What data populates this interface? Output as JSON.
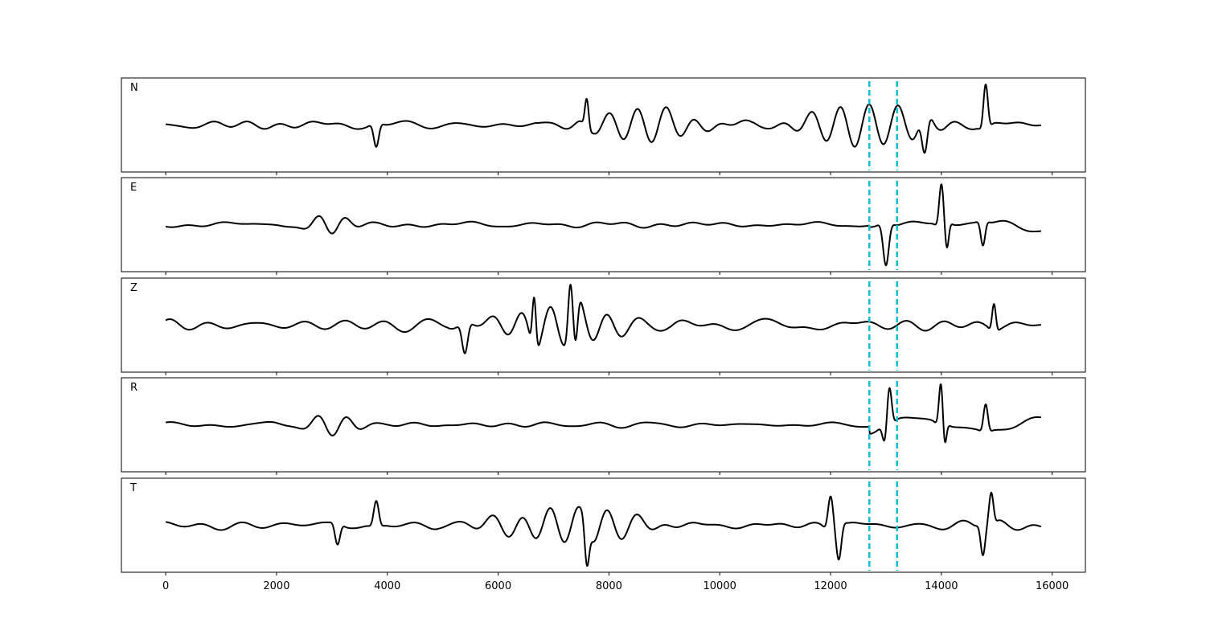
{
  "chart_data": {
    "type": "line",
    "xlim": [
      -800,
      16600
    ],
    "x_ticks": [
      0,
      2000,
      4000,
      6000,
      8000,
      10000,
      12000,
      14000,
      16000
    ],
    "x_tick_labels": [
      "0",
      "2000",
      "4000",
      "6000",
      "8000",
      "10000",
      "12000",
      "14000",
      "16000"
    ],
    "x_range": [
      0,
      15800
    ],
    "grid": false,
    "line_color": "#000000",
    "marker_color": "#17becf",
    "vertical_markers": [
      12700,
      13200
    ],
    "panels": [
      {
        "label": "N",
        "seed": 11,
        "base": 0.22,
        "bursts": [
          [
            3800,
            0.45,
            80,
            -1.0
          ],
          [
            7600,
            0.55,
            60,
            1.0
          ],
          [
            8700,
            0.4,
            500,
            0.6
          ],
          [
            12200,
            0.35,
            400,
            0.6
          ],
          [
            13200,
            0.3,
            400,
            0.5
          ],
          [
            13700,
            0.75,
            90,
            -1.0
          ],
          [
            14800,
            0.85,
            70,
            1.0
          ]
        ],
        "lowfreq_after": null
      },
      {
        "label": "E",
        "seed": 23,
        "base": 0.14,
        "bursts": [
          [
            2950,
            0.25,
            200,
            0.4
          ],
          [
            13000,
            0.95,
            90,
            -1.0
          ],
          [
            14000,
            0.95,
            70,
            1.0
          ],
          [
            14100,
            0.55,
            60,
            -1.0
          ],
          [
            14750,
            0.55,
            70,
            -1.0
          ]
        ],
        "lowfreq_after": [
          12700,
          0.35
        ]
      },
      {
        "label": "Z",
        "seed": 37,
        "base": 0.24,
        "bursts": [
          [
            5400,
            0.55,
            90,
            -1.0
          ],
          [
            6650,
            0.95,
            60,
            1.0
          ],
          [
            7300,
            0.8,
            70,
            1.0
          ],
          [
            7400,
            0.7,
            70,
            -1.0
          ],
          [
            7100,
            0.45,
            500,
            0.6
          ],
          [
            14950,
            0.5,
            60,
            1.0
          ]
        ],
        "lowfreq_after": null
      },
      {
        "label": "R",
        "seed": 53,
        "base": 0.12,
        "bursts": [
          [
            3000,
            0.2,
            250,
            0.4
          ],
          [
            13050,
            0.95,
            80,
            1.0
          ],
          [
            13000,
            0.55,
            80,
            -1.0
          ],
          [
            14000,
            0.95,
            70,
            1.0
          ],
          [
            14050,
            0.6,
            60,
            -1.0
          ],
          [
            14800,
            0.55,
            70,
            1.0
          ]
        ],
        "lowfreq_after": [
          12700,
          0.4
        ]
      },
      {
        "label": "T",
        "seed": 71,
        "base": 0.22,
        "bursts": [
          [
            3100,
            0.5,
            80,
            -1.0
          ],
          [
            3800,
            0.6,
            80,
            1.0
          ],
          [
            7600,
            0.9,
            70,
            -1.0
          ],
          [
            7300,
            0.5,
            600,
            0.6
          ],
          [
            12000,
            0.8,
            80,
            1.0
          ],
          [
            12150,
            0.8,
            80,
            -1.0
          ],
          [
            14900,
            0.75,
            70,
            1.0
          ],
          [
            14750,
            0.7,
            70,
            -1.0
          ]
        ],
        "lowfreq_after": null
      }
    ]
  }
}
